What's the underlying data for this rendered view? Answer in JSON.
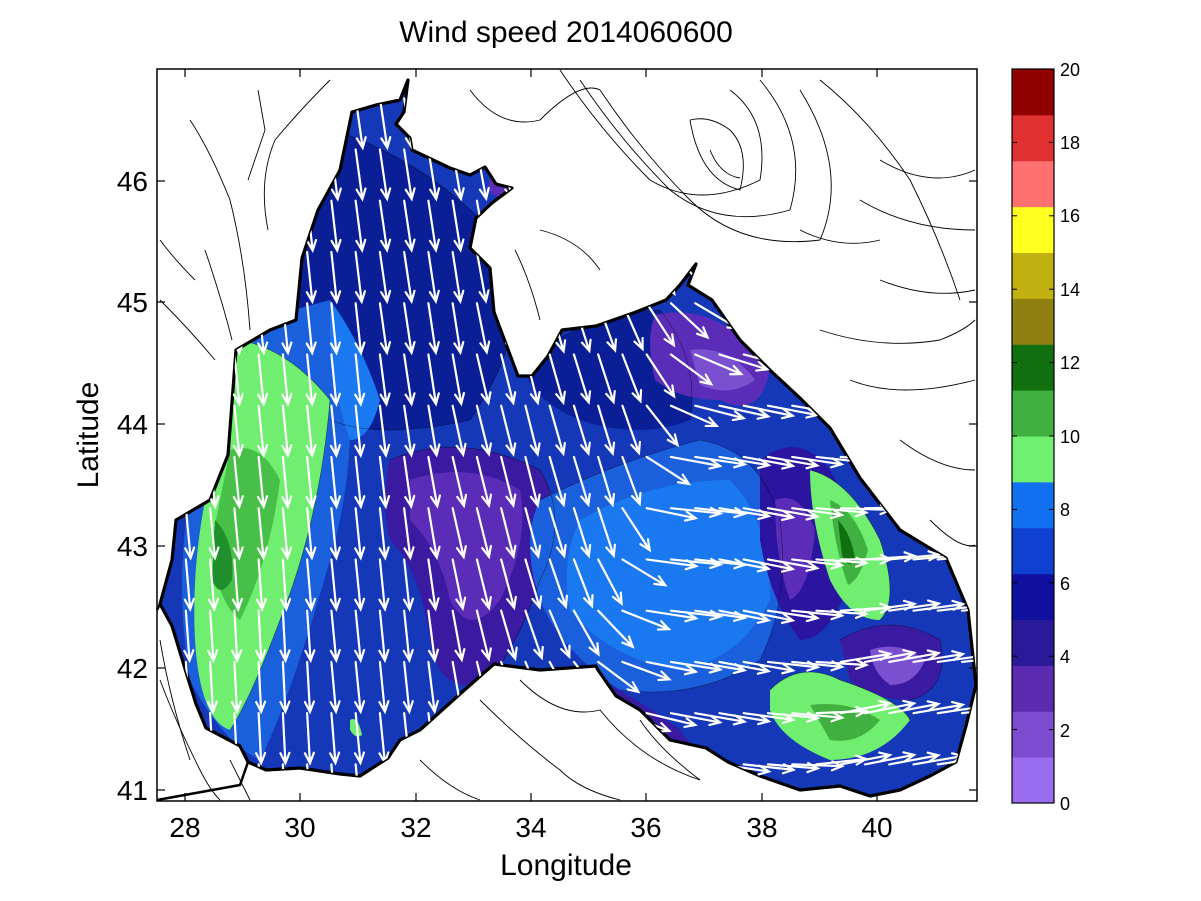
{
  "chart_data": {
    "type": "heatmap",
    "title": "Wind speed 2014060600",
    "xlabel": "Longitude",
    "ylabel": "Latitude",
    "xlim": [
      27.5,
      41.7
    ],
    "ylim": [
      40.9,
      46.9
    ],
    "x_ticks": [
      "28",
      "30",
      "32",
      "34",
      "36",
      "38",
      "40"
    ],
    "y_ticks": [
      "41",
      "42",
      "43",
      "44",
      "45",
      "46"
    ],
    "colorbar": {
      "range": [
        0,
        20
      ],
      "ticks": [
        "0",
        "2",
        "4",
        "6",
        "8",
        "10",
        "12",
        "14",
        "16",
        "18",
        "20"
      ],
      "colors": [
        "#9a6cf0",
        "#7c4cd0",
        "#5a2ab0",
        "#2a1a9a",
        "#1010a0",
        "#1040d0",
        "#1070ef",
        "#70f070",
        "#40b040",
        "#107010",
        "#908010",
        "#c0b010",
        "#ffff20",
        "#ff7070",
        "#e03030",
        "#900000"
      ]
    },
    "regions": [
      {
        "label": "green west",
        "speed": 8.5,
        "lon": 29.2,
        "lat": 43.2
      },
      {
        "label": "purple central",
        "speed": 2.5,
        "lon": 33.3,
        "lat": 42.7
      },
      {
        "label": "purple NE",
        "speed": 2.5,
        "lon": 37.4,
        "lat": 44.4
      },
      {
        "label": "green east",
        "speed": 9.5,
        "lon": 39.5,
        "lat": 43.0
      },
      {
        "label": "green SE",
        "speed": 9.0,
        "lon": 39.0,
        "lat": 41.6
      },
      {
        "label": "purple E",
        "speed": 2.0,
        "lon": 40.4,
        "lat": 42.0
      },
      {
        "label": "light blue SE",
        "speed": 6.5,
        "lon": 36.5,
        "lat": 42.5
      }
    ],
    "wind_vectors": [
      {
        "lon": 29.0,
        "lat": 44.0,
        "u": 0.1,
        "v": -1.0
      },
      {
        "lon": 30.5,
        "lat": 44.5,
        "u": 0.1,
        "v": -1.0
      },
      {
        "lon": 32.0,
        "lat": 45.0,
        "u": 0.15,
        "v": -1.0
      },
      {
        "lon": 33.5,
        "lat": 44.0,
        "u": 0.25,
        "v": -1.0
      },
      {
        "lon": 35.0,
        "lat": 43.8,
        "u": 0.3,
        "v": -1.0
      },
      {
        "lon": 36.5,
        "lat": 43.0,
        "u": 1.0,
        "v": -0.1
      },
      {
        "lon": 37.5,
        "lat": 42.6,
        "u": 1.0,
        "v": -0.2
      },
      {
        "lon": 38.5,
        "lat": 42.0,
        "u": 1.0,
        "v": -0.1
      },
      {
        "lon": 39.5,
        "lat": 41.6,
        "u": 1.0,
        "v": 0.2
      },
      {
        "lon": 29.5,
        "lat": 42.0,
        "u": 0.05,
        "v": -1.0
      },
      {
        "lon": 31.0,
        "lat": 42.5,
        "u": 0.1,
        "v": -1.0
      }
    ]
  }
}
